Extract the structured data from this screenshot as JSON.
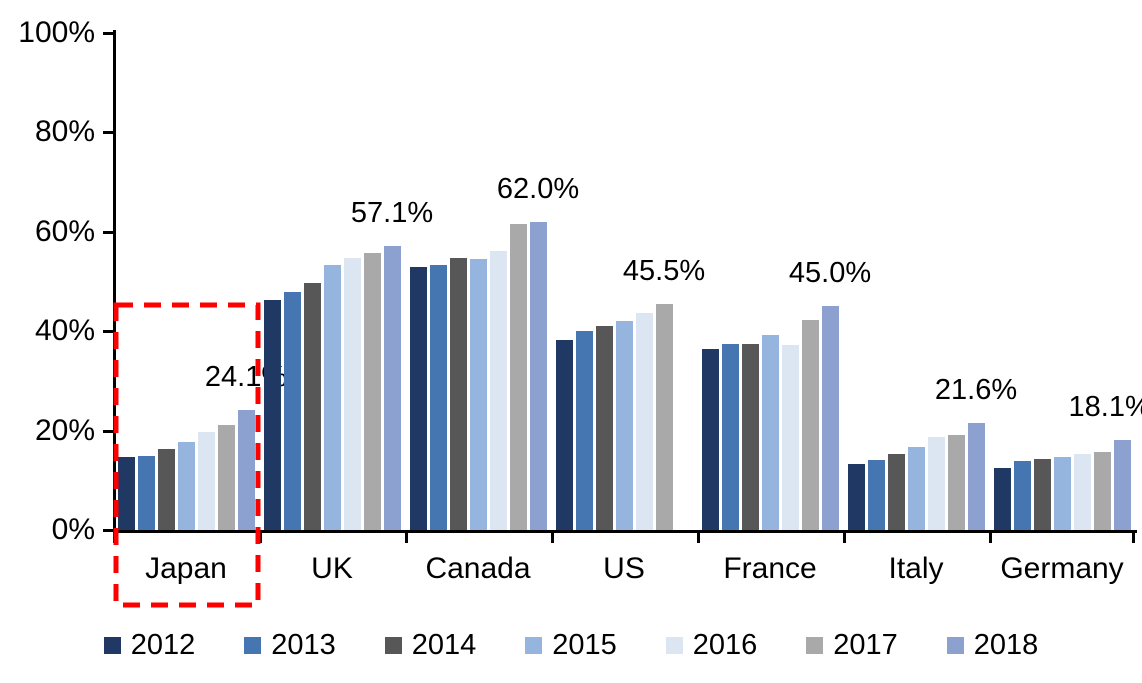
{
  "chart_data": {
    "type": "bar",
    "title": "",
    "categories": [
      "Japan",
      "UK",
      "Canada",
      "US",
      "France",
      "Italy",
      "Germany"
    ],
    "series": [
      {
        "name": "2012",
        "color": "#1F3864",
        "values": [
          14.7,
          46.3,
          52.9,
          38.2,
          36.4,
          13.2,
          12.5
        ]
      },
      {
        "name": "2013",
        "color": "#4576B2",
        "values": [
          14.8,
          47.8,
          53.4,
          40.0,
          37.5,
          14.1,
          13.9
        ]
      },
      {
        "name": "2014",
        "color": "#575757",
        "values": [
          16.4,
          49.8,
          54.8,
          41.1,
          37.5,
          15.3,
          14.3
        ]
      },
      {
        "name": "2015",
        "color": "#95B5DE",
        "values": [
          17.8,
          53.4,
          54.6,
          42.1,
          39.2,
          16.8,
          14.6
        ]
      },
      {
        "name": "2016",
        "color": "#DCE6F2",
        "values": [
          19.8,
          54.8,
          56.2,
          43.6,
          37.3,
          18.8,
          15.3
        ]
      },
      {
        "name": "2017",
        "color": "#A9A9A9",
        "values": [
          21.2,
          55.8,
          61.5,
          45.5,
          42.3,
          19.2,
          15.8
        ]
      },
      {
        "name": "2018",
        "color": "#8DA1D1",
        "values": [
          24.1,
          57.1,
          62.0,
          null,
          45.0,
          21.6,
          18.1
        ]
      }
    ],
    "data_labels": [
      "24.1%",
      "57.1%",
      "62.0%",
      "45.5%",
      "45.0%",
      "21.6%",
      "18.1%"
    ],
    "y_axis": {
      "min": 0,
      "max": 100,
      "tick_step": 20,
      "ticks": [
        "0%",
        "20%",
        "40%",
        "60%",
        "80%",
        "100%"
      ]
    },
    "legend": [
      "2012",
      "2013",
      "2014",
      "2015",
      "2016",
      "2017",
      "2018"
    ],
    "legend_position": "bottom",
    "grid": false,
    "annotations": {
      "highlight_box": {
        "category": "Japan",
        "style": "dashed-rectangle",
        "color": "#FF0000"
      }
    }
  }
}
